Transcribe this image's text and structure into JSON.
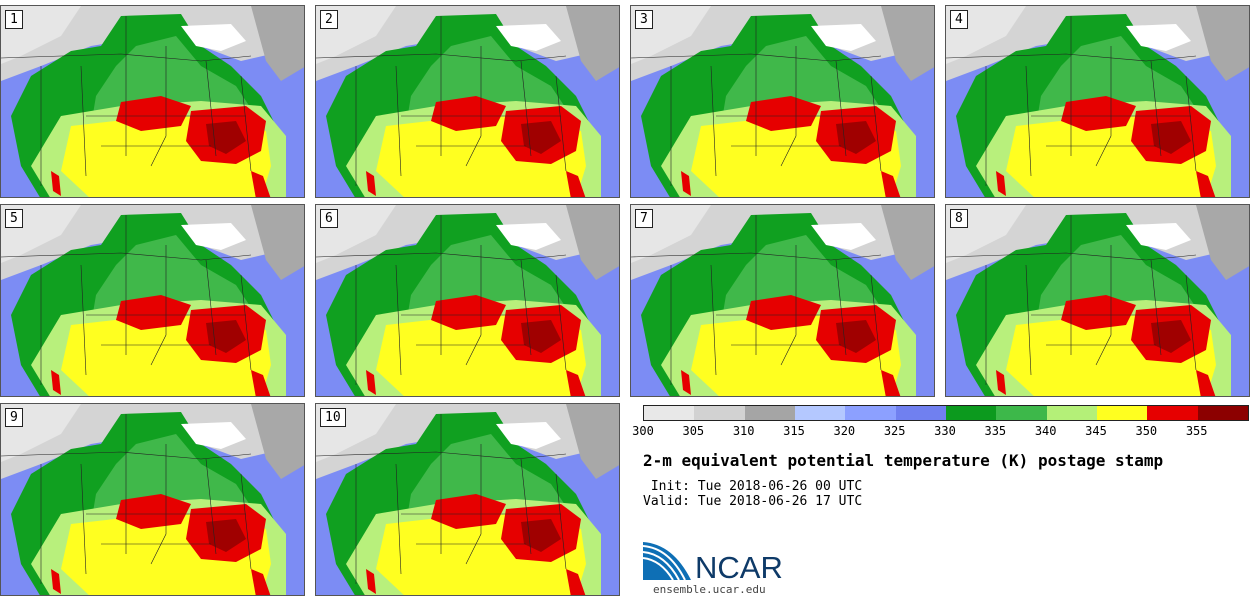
{
  "panels": [
    {
      "label": "1"
    },
    {
      "label": "2"
    },
    {
      "label": "3"
    },
    {
      "label": "4"
    },
    {
      "label": "5"
    },
    {
      "label": "6"
    },
    {
      "label": "7"
    },
    {
      "label": "8"
    },
    {
      "label": "9"
    },
    {
      "label": "10"
    }
  ],
  "colorbar": {
    "colors": [
      "#e8e8e8",
      "#d2d2d2",
      "#a5a5a5",
      "#b4c8ff",
      "#8ca0ff",
      "#7080f0",
      "#0c9a1e",
      "#3db84a",
      "#b4f078",
      "#ffff20",
      "#e60000",
      "#8c0000"
    ],
    "ticks": [
      "300",
      "305",
      "310",
      "315",
      "320",
      "325",
      "330",
      "335",
      "340",
      "345",
      "350",
      "355"
    ]
  },
  "title": "2-m equivalent potential temperature (K) postage stamp",
  "init": " Init: Tue 2018-06-26 00 UTC",
  "valid": "Valid: Tue 2018-06-26 17 UTC",
  "logo_text": "NCAR",
  "site": "ensemble.ucar.edu"
}
